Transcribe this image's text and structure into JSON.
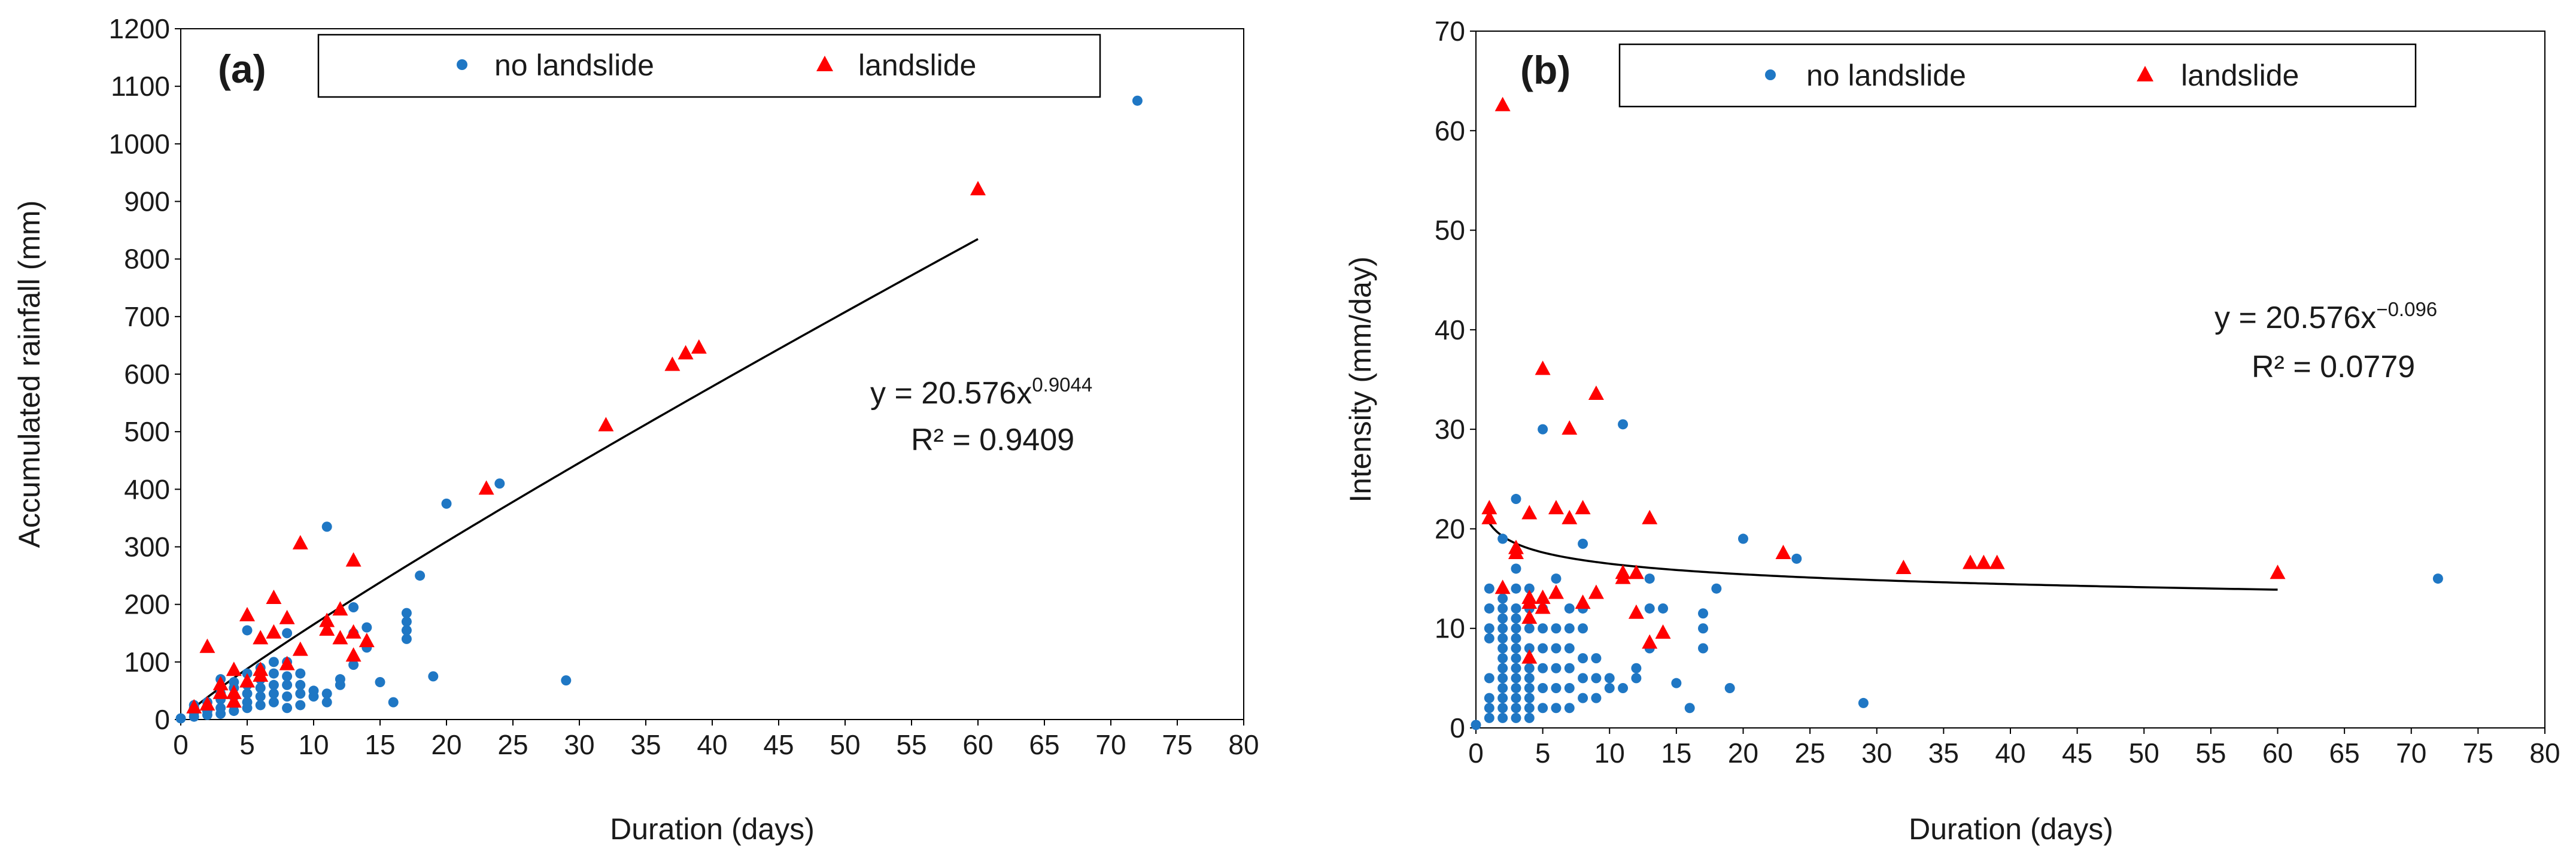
{
  "colors": {
    "no_landslide": "#1f77c4",
    "landslide": "#ff0000",
    "fit_line": "#000000"
  },
  "chart_data": [
    {
      "type": "scatter",
      "panel_label": "(a)",
      "xlabel": "Duration (days)",
      "ylabel": "Accumulated rainfall (mm)",
      "xlim": [
        0,
        80
      ],
      "ylim": [
        0,
        1200
      ],
      "xticks": [
        0,
        5,
        10,
        15,
        20,
        25,
        30,
        35,
        40,
        45,
        50,
        55,
        60,
        65,
        70,
        75,
        80
      ],
      "yticks": [
        0,
        100,
        200,
        300,
        400,
        500,
        600,
        700,
        800,
        900,
        1000,
        1100,
        1200
      ],
      "legend": {
        "no_landslide": "no landslide",
        "landslide": "landslide",
        "position": "top"
      },
      "equation": {
        "base": "y = 20.576x",
        "exponent": "0.9044",
        "r2": "R² = 0.9409"
      },
      "fit": {
        "a": 20.576,
        "b": 0.9044,
        "x_range": [
          1,
          60
        ]
      },
      "series": [
        {
          "name": "no landslide",
          "points": [
            [
              0,
              2
            ],
            [
              1,
              5
            ],
            [
              1,
              12
            ],
            [
              1,
              20
            ],
            [
              1,
              25
            ],
            [
              2,
              8
            ],
            [
              2,
              15
            ],
            [
              2,
              22
            ],
            [
              2,
              30
            ],
            [
              3,
              10
            ],
            [
              3,
              20
            ],
            [
              3,
              35
            ],
            [
              3,
              45
            ],
            [
              3,
              55
            ],
            [
              3,
              70
            ],
            [
              4,
              15
            ],
            [
              4,
              25
            ],
            [
              4,
              40
            ],
            [
              4,
              55
            ],
            [
              4,
              65
            ],
            [
              5,
              20
            ],
            [
              5,
              30
            ],
            [
              5,
              45
            ],
            [
              5,
              60
            ],
            [
              5,
              80
            ],
            [
              5,
              155
            ],
            [
              6,
              25
            ],
            [
              6,
              40
            ],
            [
              6,
              55
            ],
            [
              6,
              70
            ],
            [
              6,
              90
            ],
            [
              7,
              30
            ],
            [
              7,
              45
            ],
            [
              7,
              60
            ],
            [
              7,
              80
            ],
            [
              7,
              100
            ],
            [
              8,
              20
            ],
            [
              8,
              40
            ],
            [
              8,
              60
            ],
            [
              8,
              75
            ],
            [
              8,
              100
            ],
            [
              8,
              150
            ],
            [
              9,
              25
            ],
            [
              9,
              45
            ],
            [
              9,
              60
            ],
            [
              9,
              80
            ],
            [
              10,
              40
            ],
            [
              10,
              50
            ],
            [
              11,
              30
            ],
            [
              11,
              45
            ],
            [
              11,
              335
            ],
            [
              12,
              60
            ],
            [
              12,
              70
            ],
            [
              13,
              95
            ],
            [
              13,
              150
            ],
            [
              13,
              195
            ],
            [
              14,
              125
            ],
            [
              14,
              160
            ],
            [
              15,
              65
            ],
            [
              16,
              30
            ],
            [
              17,
              140
            ],
            [
              17,
              155
            ],
            [
              17,
              170
            ],
            [
              17,
              185
            ],
            [
              18,
              250
            ],
            [
              19,
              75
            ],
            [
              20,
              375
            ],
            [
              24,
              410
            ],
            [
              29,
              68
            ],
            [
              72,
              1075
            ]
          ]
        },
        {
          "name": "landslide",
          "points": [
            [
              1,
              20
            ],
            [
              2,
              25
            ],
            [
              2,
              125
            ],
            [
              3,
              45
            ],
            [
              3,
              60
            ],
            [
              4,
              30
            ],
            [
              4,
              45
            ],
            [
              4,
              85
            ],
            [
              5,
              65
            ],
            [
              5,
              180
            ],
            [
              6,
              75
            ],
            [
              6,
              85
            ],
            [
              6,
              140
            ],
            [
              7,
              150
            ],
            [
              7,
              210
            ],
            [
              8,
              175
            ],
            [
              8,
              95
            ],
            [
              9,
              120
            ],
            [
              9,
              305
            ],
            [
              11,
              155
            ],
            [
              11,
              170
            ],
            [
              12,
              140
            ],
            [
              12,
              190
            ],
            [
              13,
              110
            ],
            [
              13,
              150
            ],
            [
              13,
              275
            ],
            [
              14,
              135
            ],
            [
              23,
              400
            ],
            [
              32,
              510
            ],
            [
              37,
              615
            ],
            [
              38,
              635
            ],
            [
              39,
              645
            ],
            [
              60,
              920
            ]
          ]
        }
      ]
    },
    {
      "type": "scatter",
      "panel_label": "(b)",
      "xlabel": "Duration (days)",
      "ylabel": "Intensity (mm/day)",
      "xlim": [
        0,
        80
      ],
      "ylim": [
        0,
        70
      ],
      "xticks": [
        0,
        5,
        10,
        15,
        20,
        25,
        30,
        35,
        40,
        45,
        50,
        55,
        60,
        65,
        70,
        75,
        80
      ],
      "yticks": [
        0,
        10,
        20,
        30,
        40,
        50,
        60,
        70
      ],
      "legend": {
        "no_landslide": "no landslide",
        "landslide": "landslide",
        "position": "top"
      },
      "equation": {
        "base": "y = 20.576x",
        "exponent": "−0.096",
        "r2": "R² = 0.0779"
      },
      "fit": {
        "a": 20.576,
        "b": -0.096,
        "x_range": [
          1,
          60
        ]
      },
      "series": [
        {
          "name": "no landslide",
          "points": [
            [
              0,
              0.3
            ],
            [
              1,
              1
            ],
            [
              1,
              2
            ],
            [
              1,
              3
            ],
            [
              1,
              5
            ],
            [
              1,
              9
            ],
            [
              1,
              10
            ],
            [
              1,
              12
            ],
            [
              1,
              14
            ],
            [
              2,
              1
            ],
            [
              2,
              2
            ],
            [
              2,
              3
            ],
            [
              2,
              4
            ],
            [
              2,
              5
            ],
            [
              2,
              6
            ],
            [
              2,
              7
            ],
            [
              2,
              8
            ],
            [
              2,
              9
            ],
            [
              2,
              10
            ],
            [
              2,
              11
            ],
            [
              2,
              12
            ],
            [
              2,
              13
            ],
            [
              2,
              19
            ],
            [
              3,
              1
            ],
            [
              3,
              2
            ],
            [
              3,
              3
            ],
            [
              3,
              4
            ],
            [
              3,
              5
            ],
            [
              3,
              6
            ],
            [
              3,
              7
            ],
            [
              3,
              8
            ],
            [
              3,
              9
            ],
            [
              3,
              10
            ],
            [
              3,
              11
            ],
            [
              3,
              12
            ],
            [
              3,
              14
            ],
            [
              3,
              16
            ],
            [
              3,
              23
            ],
            [
              4,
              1
            ],
            [
              4,
              2
            ],
            [
              4,
              3
            ],
            [
              4,
              4
            ],
            [
              4,
              5
            ],
            [
              4,
              6
            ],
            [
              4,
              8
            ],
            [
              4,
              10
            ],
            [
              4,
              12
            ],
            [
              4,
              14
            ],
            [
              5,
              2
            ],
            [
              5,
              4
            ],
            [
              5,
              6
            ],
            [
              5,
              8
            ],
            [
              5,
              10
            ],
            [
              5,
              12
            ],
            [
              5,
              30
            ],
            [
              6,
              2
            ],
            [
              6,
              4
            ],
            [
              6,
              6
            ],
            [
              6,
              8
            ],
            [
              6,
              10
            ],
            [
              6,
              15
            ],
            [
              7,
              2
            ],
            [
              7,
              4
            ],
            [
              7,
              6
            ],
            [
              7,
              8
            ],
            [
              7,
              10
            ],
            [
              7,
              12
            ],
            [
              8,
              3
            ],
            [
              8,
              5
            ],
            [
              8,
              7
            ],
            [
              8,
              10
            ],
            [
              8,
              12
            ],
            [
              8,
              18.5
            ],
            [
              9,
              3
            ],
            [
              9,
              5
            ],
            [
              9,
              7
            ],
            [
              10,
              4
            ],
            [
              10,
              5
            ],
            [
              11,
              4
            ],
            [
              11,
              30.5
            ],
            [
              12,
              5
            ],
            [
              12,
              6
            ],
            [
              13,
              8
            ],
            [
              13,
              12
            ],
            [
              13,
              15
            ],
            [
              14,
              12
            ],
            [
              15,
              4.5
            ],
            [
              16,
              2
            ],
            [
              17,
              8
            ],
            [
              17,
              10
            ],
            [
              17,
              11.5
            ],
            [
              18,
              14
            ],
            [
              19,
              4
            ],
            [
              20,
              19
            ],
            [
              24,
              17
            ],
            [
              29,
              2.5
            ],
            [
              72,
              15
            ]
          ]
        },
        {
          "name": "landslide",
          "points": [
            [
              1,
              21
            ],
            [
              1,
              22
            ],
            [
              2,
              62.5
            ],
            [
              2,
              14
            ],
            [
              3,
              17.5
            ],
            [
              3,
              18
            ],
            [
              4,
              7
            ],
            [
              4,
              11
            ],
            [
              4,
              12.5
            ],
            [
              4,
              13
            ],
            [
              4,
              21.5
            ],
            [
              5,
              12
            ],
            [
              5,
              13
            ],
            [
              5,
              36
            ],
            [
              6,
              13.5
            ],
            [
              6,
              22
            ],
            [
              7,
              21
            ],
            [
              7,
              30
            ],
            [
              8,
              12.5
            ],
            [
              8,
              22
            ],
            [
              9,
              13.5
            ],
            [
              9,
              33.5
            ],
            [
              11,
              15
            ],
            [
              11,
              15.5
            ],
            [
              12,
              11.5
            ],
            [
              12,
              15.5
            ],
            [
              13,
              8.5
            ],
            [
              13,
              21
            ],
            [
              14,
              9.5
            ],
            [
              23,
              17.5
            ],
            [
              32,
              16
            ],
            [
              37,
              16.5
            ],
            [
              38,
              16.5
            ],
            [
              39,
              16.5
            ],
            [
              60,
              15.5
            ]
          ]
        }
      ]
    }
  ]
}
